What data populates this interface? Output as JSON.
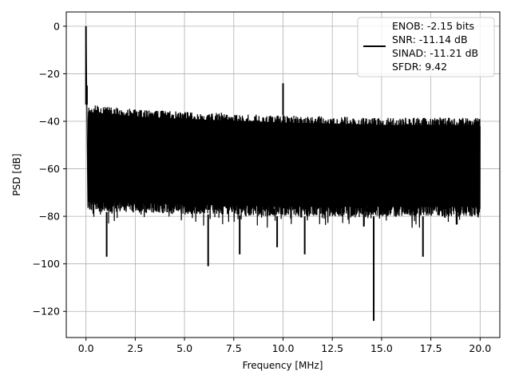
{
  "chart_data": {
    "type": "line",
    "xlabel": "Frequency [MHz]",
    "ylabel": "PSD [dB]",
    "xlim": [
      -1.0,
      21.0
    ],
    "ylim": [
      -131,
      6
    ],
    "xticks": [
      0.0,
      2.5,
      5.0,
      7.5,
      10.0,
      12.5,
      15.0,
      17.5,
      20.0
    ],
    "xtick_labels": [
      "0.0",
      "2.5",
      "5.0",
      "7.5",
      "10.0",
      "12.5",
      "15.0",
      "17.5",
      "20.0"
    ],
    "yticks": [
      0,
      -20,
      -40,
      -60,
      -80,
      -100,
      -120
    ],
    "ytick_labels": [
      "0",
      "−20",
      "−40",
      "−60",
      "−80",
      "−100",
      "−120"
    ],
    "grid": true,
    "legend_position": "top-right",
    "line_color": "#000000",
    "series": [
      {
        "legend_lines": [
          "ENOB: -2.15 bits",
          "SNR: -11.14 dB",
          "SINAD: -11.21 dB",
          "SFDR: 9.42"
        ],
        "noise_floor_upper_db": [
          [
            0.1,
            -33
          ],
          [
            2.5,
            -35
          ],
          [
            5.0,
            -36
          ],
          [
            10.0,
            -37.5
          ],
          [
            15.0,
            -38.5
          ],
          [
            20.0,
            -38.5
          ]
        ],
        "noise_floor_lower_db": [
          [
            0.1,
            -78
          ],
          [
            5.0,
            -79
          ],
          [
            10.0,
            -80
          ],
          [
            20.0,
            -80
          ]
        ],
        "peaks": [
          {
            "x": 0.0,
            "y": 0
          },
          {
            "x": 0.05,
            "y": -25
          },
          {
            "x": 10.0,
            "y": -24
          }
        ],
        "dips": [
          {
            "x": 1.05,
            "y": -97
          },
          {
            "x": 6.2,
            "y": -101
          },
          {
            "x": 7.8,
            "y": -96
          },
          {
            "x": 9.7,
            "y": -93
          },
          {
            "x": 11.1,
            "y": -96
          },
          {
            "x": 14.6,
            "y": -124
          },
          {
            "x": 17.1,
            "y": -97
          }
        ]
      }
    ]
  }
}
